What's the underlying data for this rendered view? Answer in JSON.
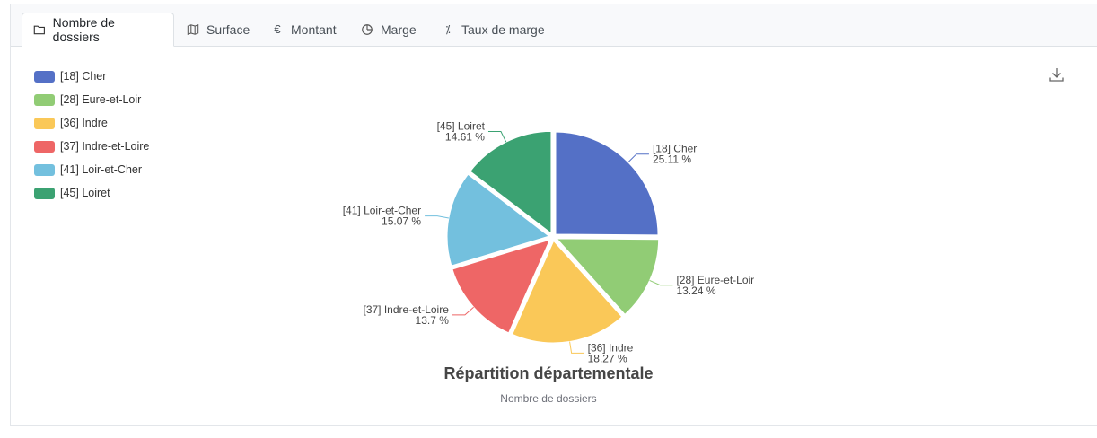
{
  "tabs": [
    {
      "label": "Nombre de dossiers",
      "icon": "folder-icon",
      "active": true
    },
    {
      "label": "Surface",
      "icon": "map-icon",
      "active": false
    },
    {
      "label": "Montant",
      "icon": "euro-icon",
      "active": false
    },
    {
      "label": "Marge",
      "icon": "pie-chart-icon",
      "active": false
    },
    {
      "label": "Taux de marge",
      "icon": "percent-icon",
      "active": false
    }
  ],
  "tab_symbols": {
    "euro": "€",
    "percent": "⁒"
  },
  "chart_data": {
    "type": "pie",
    "title": "Répartition départementale",
    "subtitle": "Nombre de dossiers",
    "legend_position": "top-left",
    "slices": [
      {
        "name": "[18] Cher",
        "value": 25.11,
        "label": "25.11 %",
        "color": "#5470c6"
      },
      {
        "name": "[28] Eure-et-Loir",
        "value": 13.24,
        "label": "13.24 %",
        "color": "#91cc75"
      },
      {
        "name": "[36] Indre",
        "value": 18.27,
        "label": "18.27 %",
        "color": "#fac858"
      },
      {
        "name": "[37] Indre-et-Loire",
        "value": 13.7,
        "label": "13.7 %",
        "color": "#ee6666"
      },
      {
        "name": "[41] Loir-et-Cher",
        "value": 15.07,
        "label": "15.07 %",
        "color": "#73c0de"
      },
      {
        "name": "[45] Loiret",
        "value": 14.61,
        "label": "14.61 %",
        "color": "#3ba272"
      }
    ]
  },
  "toolbox": {
    "download_icon": "download-icon"
  }
}
